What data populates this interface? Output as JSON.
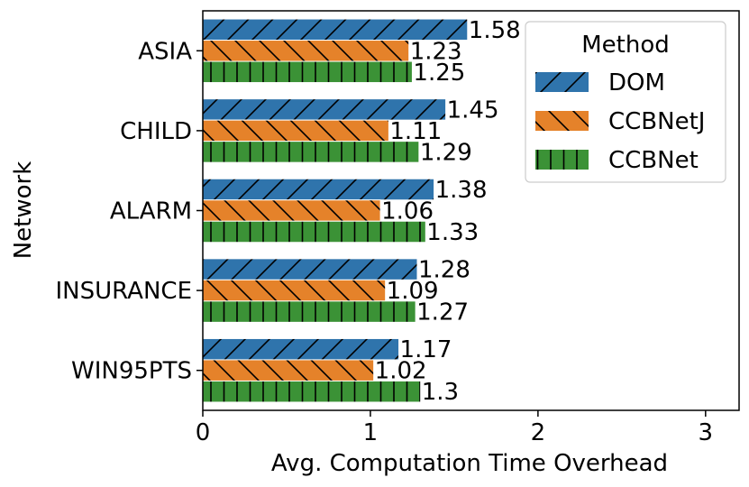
{
  "chart_data": {
    "type": "bar",
    "orientation": "horizontal",
    "title": "",
    "xlabel": "Avg. Computation Time Overhead",
    "ylabel": "Network",
    "xlim": [
      0,
      3.2
    ],
    "xticks": [
      0,
      1,
      2,
      3
    ],
    "grid": false,
    "categories": [
      "ASIA",
      "CHILD",
      "ALARM",
      "INSURANCE",
      "WIN95PTS"
    ],
    "series": [
      {
        "name": "DOM",
        "color": "#2f74ac",
        "hatch": "forward-slash",
        "values": [
          1.58,
          1.45,
          1.38,
          1.28,
          1.17
        ],
        "labels": [
          "1.58",
          "1.45",
          "1.38",
          "1.28",
          "1.17"
        ]
      },
      {
        "name": "CCBNetJ",
        "color": "#e5822a",
        "hatch": "back-slash",
        "values": [
          1.23,
          1.11,
          1.06,
          1.09,
          1.02
        ],
        "labels": [
          "1.23",
          "1.11",
          "1.06",
          "1.09",
          "1.02"
        ]
      },
      {
        "name": "CCBNet",
        "color": "#3b9236",
        "hatch": "vertical",
        "values": [
          1.25,
          1.29,
          1.33,
          1.27,
          1.3
        ],
        "labels": [
          "1.25",
          "1.29",
          "1.33",
          "1.27",
          "1.3"
        ]
      }
    ],
    "legend": {
      "title": "Method",
      "position": "upper right"
    }
  }
}
